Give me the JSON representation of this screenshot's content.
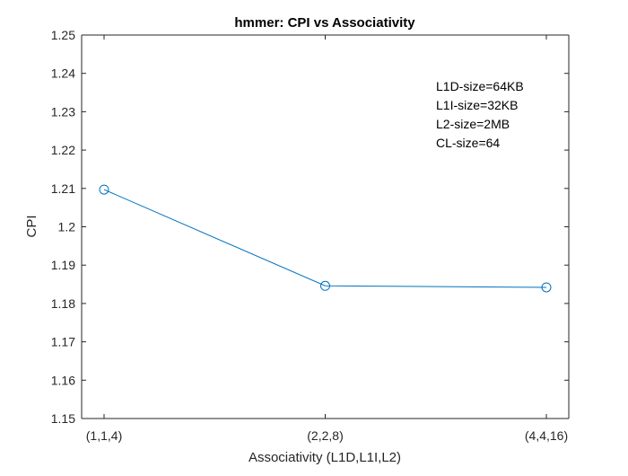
{
  "chart_data": {
    "type": "line",
    "title": "hmmer: CPI vs Associativity",
    "xlabel": "Associativity (L1D,L1I,L2)",
    "ylabel": "CPI",
    "categories": [
      "(1,1,4)",
      "(2,2,8)",
      "(4,4,16)"
    ],
    "series": [
      {
        "values": [
          1.2097,
          1.1846,
          1.1842
        ],
        "marker": "circle"
      }
    ],
    "ylim": [
      1.15,
      1.25
    ],
    "yticks": [
      "1.15",
      "1.16",
      "1.17",
      "1.18",
      "1.19",
      "1.2",
      "1.21",
      "1.22",
      "1.23",
      "1.24",
      "1.25"
    ],
    "grid": false,
    "legend": "none",
    "annotations": [
      "L1D-size=64KB",
      "L1I-size=32KB",
      "L2-size=2MB",
      "CL-size=64"
    ],
    "colors": {
      "line": "#0072BD",
      "axis": "#262626",
      "background": "#ffffff"
    }
  }
}
